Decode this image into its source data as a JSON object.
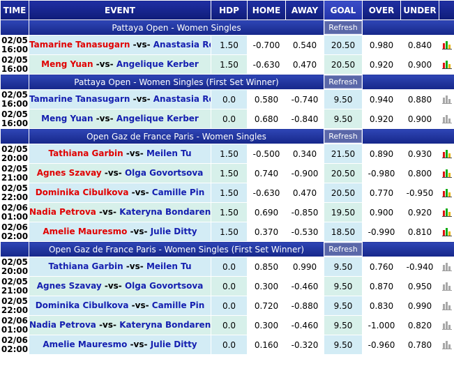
{
  "headers": {
    "time": "TIME",
    "event": "EVENT",
    "hdp": "HDP",
    "home": "HOME",
    "away": "AWAY",
    "goal": "GOAL",
    "over": "OVER",
    "under": "UNDER"
  },
  "refresh_label": "Refresh",
  "vs_label": "-vs-",
  "sections": [
    {
      "title": "Pattaya Open - Women Singles",
      "rows": [
        {
          "date": "02/05",
          "clock": "16:00",
          "home": "Tamarine Tanasugarn",
          "away": "Anastasia Rodionova",
          "favorite": "home",
          "hdp": "1.50",
          "home_odds": "-0.700",
          "away_odds": "0.540",
          "goal": "20.50",
          "over": "0.980",
          "under": "0.840",
          "chart": "color"
        },
        {
          "date": "02/05",
          "clock": "16:00",
          "home": "Meng Yuan",
          "away": "Angelique Kerber",
          "favorite": "home",
          "hdp": "1.50",
          "home_odds": "-0.630",
          "away_odds": "0.470",
          "goal": "20.50",
          "over": "0.920",
          "under": "0.900",
          "chart": "color"
        }
      ]
    },
    {
      "title": "Pattaya Open - Women Singles (First Set Winner)",
      "rows": [
        {
          "date": "02/05",
          "clock": "16:00",
          "home": "Tamarine Tanasugarn",
          "away": "Anastasia Rodionova",
          "favorite": "none",
          "hdp": "0.0",
          "home_odds": "0.580",
          "away_odds": "-0.740",
          "goal": "9.50",
          "over": "0.940",
          "under": "0.880",
          "chart": "gray"
        },
        {
          "date": "02/05",
          "clock": "16:00",
          "home": "Meng Yuan",
          "away": "Angelique Kerber",
          "favorite": "none",
          "hdp": "0.0",
          "home_odds": "0.680",
          "away_odds": "-0.840",
          "goal": "9.50",
          "over": "0.920",
          "under": "0.900",
          "chart": "gray"
        }
      ]
    },
    {
      "title": "Open Gaz de France Paris - Women Singles",
      "rows": [
        {
          "date": "02/05",
          "clock": "20:00",
          "home": "Tathiana Garbin",
          "away": "Meilen Tu",
          "favorite": "home",
          "hdp": "1.50",
          "home_odds": "-0.500",
          "away_odds": "0.340",
          "goal": "21.50",
          "over": "0.890",
          "under": "0.930",
          "chart": "color"
        },
        {
          "date": "02/05",
          "clock": "21:00",
          "home": "Agnes Szavay",
          "away": "Olga Govortsova",
          "favorite": "home",
          "hdp": "1.50",
          "home_odds": "0.740",
          "away_odds": "-0.900",
          "goal": "20.50",
          "over": "-0.980",
          "under": "0.800",
          "chart": "color"
        },
        {
          "date": "02/05",
          "clock": "22:00",
          "home": "Dominika Cibulkova",
          "away": "Camille Pin",
          "favorite": "home",
          "hdp": "1.50",
          "home_odds": "-0.630",
          "away_odds": "0.470",
          "goal": "20.50",
          "over": "0.770",
          "under": "-0.950",
          "chart": "color"
        },
        {
          "date": "02/06",
          "clock": "01:00",
          "home": "Nadia Petrova",
          "away": "Kateryna Bondarenko",
          "favorite": "home",
          "hdp": "1.50",
          "home_odds": "0.690",
          "away_odds": "-0.850",
          "goal": "19.50",
          "over": "0.900",
          "under": "0.920",
          "chart": "color"
        },
        {
          "date": "02/06",
          "clock": "02:00",
          "home": "Amelie Mauresmo",
          "away": "Julie Ditty",
          "favorite": "home",
          "hdp": "1.50",
          "home_odds": "0.370",
          "away_odds": "-0.530",
          "goal": "18.50",
          "over": "-0.990",
          "under": "0.810",
          "chart": "color"
        }
      ]
    },
    {
      "title": "Open Gaz de France Paris - Women Singles (First Set Winner)",
      "rows": [
        {
          "date": "02/05",
          "clock": "20:00",
          "home": "Tathiana Garbin",
          "away": "Meilen Tu",
          "favorite": "none",
          "hdp": "0.0",
          "home_odds": "0.850",
          "away_odds": "0.990",
          "goal": "9.50",
          "over": "0.760",
          "under": "-0.940",
          "chart": "gray"
        },
        {
          "date": "02/05",
          "clock": "21:00",
          "home": "Agnes Szavay",
          "away": "Olga Govortsova",
          "favorite": "none",
          "hdp": "0.0",
          "home_odds": "0.300",
          "away_odds": "-0.460",
          "goal": "9.50",
          "over": "0.870",
          "under": "0.950",
          "chart": "gray"
        },
        {
          "date": "02/05",
          "clock": "22:00",
          "home": "Dominika Cibulkova",
          "away": "Camille Pin",
          "favorite": "none",
          "hdp": "0.0",
          "home_odds": "0.720",
          "away_odds": "-0.880",
          "goal": "9.50",
          "over": "0.830",
          "under": "0.990",
          "chart": "gray"
        },
        {
          "date": "02/06",
          "clock": "01:00",
          "home": "Nadia Petrova",
          "away": "Kateryna Bondarenko",
          "favorite": "none",
          "hdp": "0.0",
          "home_odds": "0.300",
          "away_odds": "-0.460",
          "goal": "9.50",
          "over": "-1.000",
          "under": "0.820",
          "chart": "gray"
        },
        {
          "date": "02/06",
          "clock": "02:00",
          "home": "Amelie Mauresmo",
          "away": "Julie Ditty",
          "favorite": "none",
          "hdp": "0.0",
          "home_odds": "0.160",
          "away_odds": "-0.320",
          "goal": "9.50",
          "over": "-0.960",
          "under": "0.780",
          "chart": "gray"
        }
      ]
    }
  ],
  "colors": {
    "header_bg": "#1a2a9c",
    "favorite_name": "#e00000",
    "other_name": "#1520b0",
    "negative_odds": "#e00000"
  }
}
